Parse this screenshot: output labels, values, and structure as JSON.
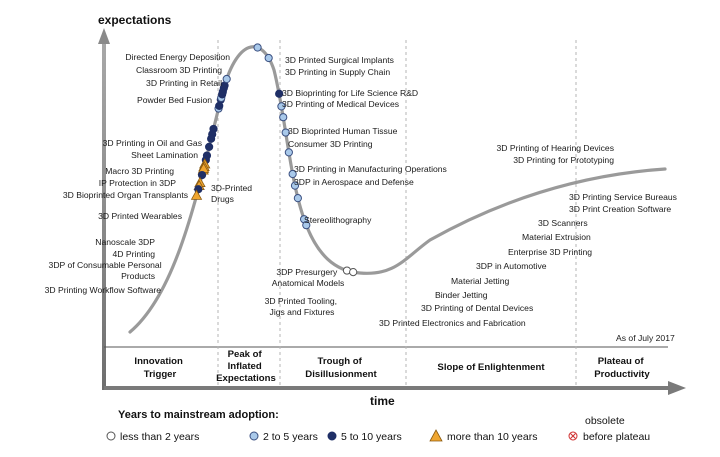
{
  "axes": {
    "y_title": "expectations",
    "x_title": "time"
  },
  "as_of": "As of July 2017",
  "phases": [
    {
      "lines": [
        "Innovation",
        "Trigger"
      ]
    },
    {
      "lines": [
        "Peak of",
        "Inflated",
        "Expectations"
      ]
    },
    {
      "lines": [
        "Trough of",
        "Disillusionment"
      ]
    },
    {
      "lines": [
        "Slope of Enlightenment"
      ]
    },
    {
      "lines": [
        "Plateau of",
        "Productivity"
      ]
    }
  ],
  "technologies": [
    {
      "lines": [
        "Directed Energy Deposition"
      ],
      "category": "5 to 10 years",
      "t": 0.2435
    },
    {
      "lines": [
        "Classroom 3D Printing"
      ],
      "category": "5 to 10 years",
      "t": 0.2375
    },
    {
      "lines": [
        "3D Printing in Retail"
      ],
      "category": "5 to 10 years",
      "t": 0.2325
    },
    {
      "lines": [
        "Powder Bed Fusion"
      ],
      "category": "5 to 10 years",
      "t": 0.2233
    },
    {
      "lines": [
        "3D Printing in Oil and Gas"
      ],
      "category": "5 to 10 years",
      "t": 0.2135
    },
    {
      "lines": [
        "Sheet Lamination"
      ],
      "category": "5 to 10 years",
      "t": 0.2085
    },
    {
      "lines": [
        "Macro 3D Printing"
      ],
      "category": "more than 10 years",
      "t": 0.2035
    },
    {
      "lines": [
        "IP Protection in 3DP"
      ],
      "category": "more than 10 years",
      "t": 0.2005
    },
    {
      "lines": [
        "3D Bioprinted Organ Transplants"
      ],
      "category": "more than 10 years",
      "t": 0.1965
    },
    {
      "lines": [
        "3D-Printed",
        "Drugs"
      ],
      "category": "more than 10 years",
      "t": 0.1985
    },
    {
      "lines": [
        "3D Printed Wearables"
      ],
      "category": "5 to 10 years",
      "t": 0.1915
    },
    {
      "lines": [
        "Nanoscale 3DP"
      ],
      "category": "more than 10 years",
      "t": 0.1825
    },
    {
      "lines": [
        "4D Printing"
      ],
      "category": "more than 10 years",
      "t": 0.179
    },
    {
      "lines": [
        "3DP of Consumable Personal",
        "Products"
      ],
      "category": "5 to 10 years",
      "t": 0.1755
    },
    {
      "lines": [
        "3D Printing Workflow Software"
      ],
      "category": "more than 10 years",
      "t": 0.168
    },
    {
      "lines": [
        "3D Printed Surgical Implants"
      ],
      "category": "2 to 5 years",
      "t": 0.2665
    },
    {
      "lines": [
        "3D Printing in Supply Chain"
      ],
      "category": "5 to 10 years",
      "t": 0.2695
    },
    {
      "lines": [
        "3D Bioprinting for Life Science R&D"
      ],
      "category": "5 to 10 years",
      "t": 0.2765
    },
    {
      "lines": [
        "3D Printing of Medical Devices"
      ],
      "category": "2 to 5 years",
      "t": 0.2785
    },
    {
      "lines": [
        "3D Bioprinted Human Tissue"
      ],
      "category": "5 to 10 years",
      "t": 0.2825
    },
    {
      "lines": [
        "Consumer 3D Printing"
      ],
      "category": "5 to 10 years",
      "t": 0.2855
    },
    {
      "lines": [
        "3D Printing in Manufacturing Operations"
      ],
      "category": "5 to 10 years",
      "t": 0.2895
    },
    {
      "lines": [
        "3DP in Aerospace and Defense"
      ],
      "category": "5 to 10 years",
      "t": 0.2925
    },
    {
      "lines": [
        "Stereolithography"
      ],
      "category": "2 to 5 years",
      "t": 0.3
    },
    {
      "lines": [
        "3DP Presurgery",
        "Anatomical Models"
      ],
      "category": "2 to 5 years",
      "t": 0.353
    },
    {
      "lines": [
        "3D Printed Tooling,",
        "Jigs and Fixtures"
      ],
      "category": "2 to 5 years",
      "t": 0.37
    },
    {
      "lines": [
        "3D Printed Electronics and Fabrication"
      ],
      "category": "5 to 10 years",
      "t": 0.411
    },
    {
      "lines": [
        "3D Printing of Dental Devices"
      ],
      "category": "2 to 5 years",
      "t": 0.425
    },
    {
      "lines": [
        "Binder Jetting"
      ],
      "category": "2 to 5 years",
      "t": 0.437
    },
    {
      "lines": [
        "Material Jetting"
      ],
      "category": "2 to 5 years",
      "t": 0.454
    },
    {
      "lines": [
        "3DP in Automotive"
      ],
      "category": "2 to 5 years",
      "t": 0.476
    },
    {
      "lines": [
        "Enterprise 3D Printing"
      ],
      "category": "2 to 5 years",
      "t": 0.5
    },
    {
      "lines": [
        "Material Extrusion"
      ],
      "category": "2 to 5 years",
      "t": 0.513
    },
    {
      "lines": [
        "3D Scanners"
      ],
      "category": "2 to 5 years",
      "t": 0.527
    },
    {
      "lines": [
        "3D Printing Service Bureaus"
      ],
      "category": "2 to 5 years",
      "t": 0.551
    },
    {
      "lines": [
        "3D Print Creation Software"
      ],
      "category": "2 to 5 years",
      "t": 0.558
    },
    {
      "lines": [
        "3D Printing of Hearing Devices"
      ],
      "category": "less than 2 years",
      "t": 0.627
    },
    {
      "lines": [
        "3D Printing for Prototyping"
      ],
      "category": "less than 2 years",
      "t": 0.634
    }
  ],
  "legend": {
    "title": "Years to mainstream adoption:",
    "items": [
      {
        "label": "less than 2 years",
        "category": "less than 2 years"
      },
      {
        "label": "2 to 5 years",
        "category": "2 to 5 years"
      },
      {
        "label": "5 to 10 years",
        "category": "5 to 10 years"
      },
      {
        "label": "more than 10 years",
        "category": "more than 10 years"
      },
      {
        "label_lines": [
          "obsolete",
          "before plateau"
        ],
        "category": "obsolete before plateau"
      }
    ]
  },
  "colors": {
    "curve": "#9a9a9a",
    "axis": "#6e6e6e",
    "less_than_2": "#ffffff",
    "two_to_five": "#a9c9ea",
    "five_to_ten": "#1f2f66",
    "more_than_10": "#f0a630",
    "obsolete": "#d03030"
  }
}
